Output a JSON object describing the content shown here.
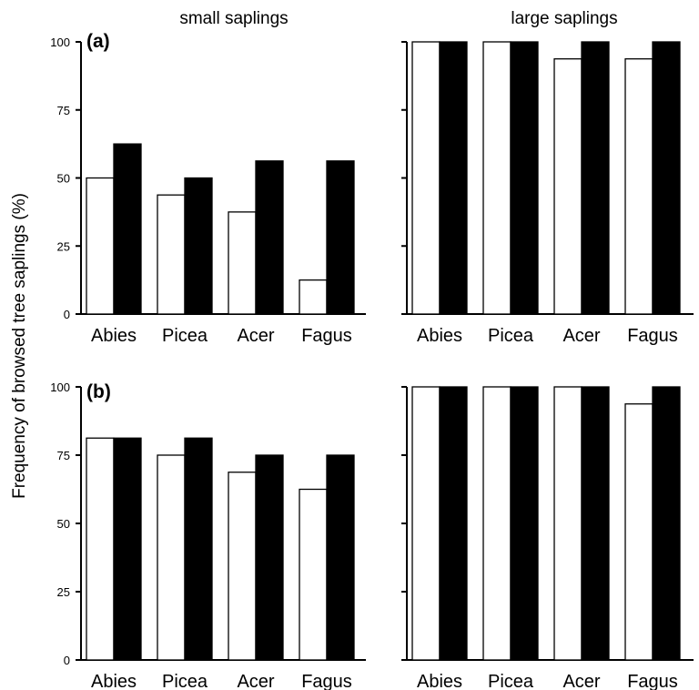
{
  "ylabel": "Frequency of browsed tree saplings (%)",
  "column_titles": [
    "small saplings",
    "large saplings"
  ],
  "panel_labels": [
    "(a)",
    "(b)"
  ],
  "series_colors": [
    "#ffffff",
    "#000000"
  ],
  "chart_data": [
    {
      "type": "bar",
      "panel": "(a)",
      "title": "small saplings",
      "categories": [
        "Abies",
        "Picea",
        "Acer",
        "Fagus"
      ],
      "series": [
        {
          "values": [
            50,
            43.75,
            37.5,
            12.5
          ]
        },
        {
          "values": [
            62.5,
            50,
            56.25,
            56.25
          ]
        }
      ],
      "ylabel": "Frequency of browsed tree saplings (%)",
      "ylim": [
        0,
        100
      ],
      "yticks": [
        0,
        25,
        50,
        75,
        100
      ]
    },
    {
      "type": "bar",
      "panel": "(a)",
      "title": "large saplings",
      "categories": [
        "Abies",
        "Picea",
        "Acer",
        "Fagus"
      ],
      "series": [
        {
          "values": [
            100,
            100,
            93.75,
            93.75
          ]
        },
        {
          "values": [
            100,
            100,
            100,
            100
          ]
        }
      ],
      "ylim": [
        0,
        100
      ]
    },
    {
      "type": "bar",
      "panel": "(b)",
      "title": "small saplings",
      "categories": [
        "Abies",
        "Picea",
        "Acer",
        "Fagus"
      ],
      "series": [
        {
          "values": [
            81.25,
            75,
            68.75,
            62.5
          ]
        },
        {
          "values": [
            81.25,
            81.25,
            75,
            75
          ]
        }
      ],
      "ylim": [
        0,
        100
      ],
      "yticks": [
        0,
        25,
        50,
        75,
        100
      ]
    },
    {
      "type": "bar",
      "panel": "(b)",
      "title": "large saplings",
      "categories": [
        "Abies",
        "Picea",
        "Acer",
        "Fagus"
      ],
      "series": [
        {
          "values": [
            100,
            100,
            100,
            93.75
          ]
        },
        {
          "values": [
            100,
            100,
            100,
            100
          ]
        }
      ],
      "ylim": [
        0,
        100
      ]
    }
  ]
}
